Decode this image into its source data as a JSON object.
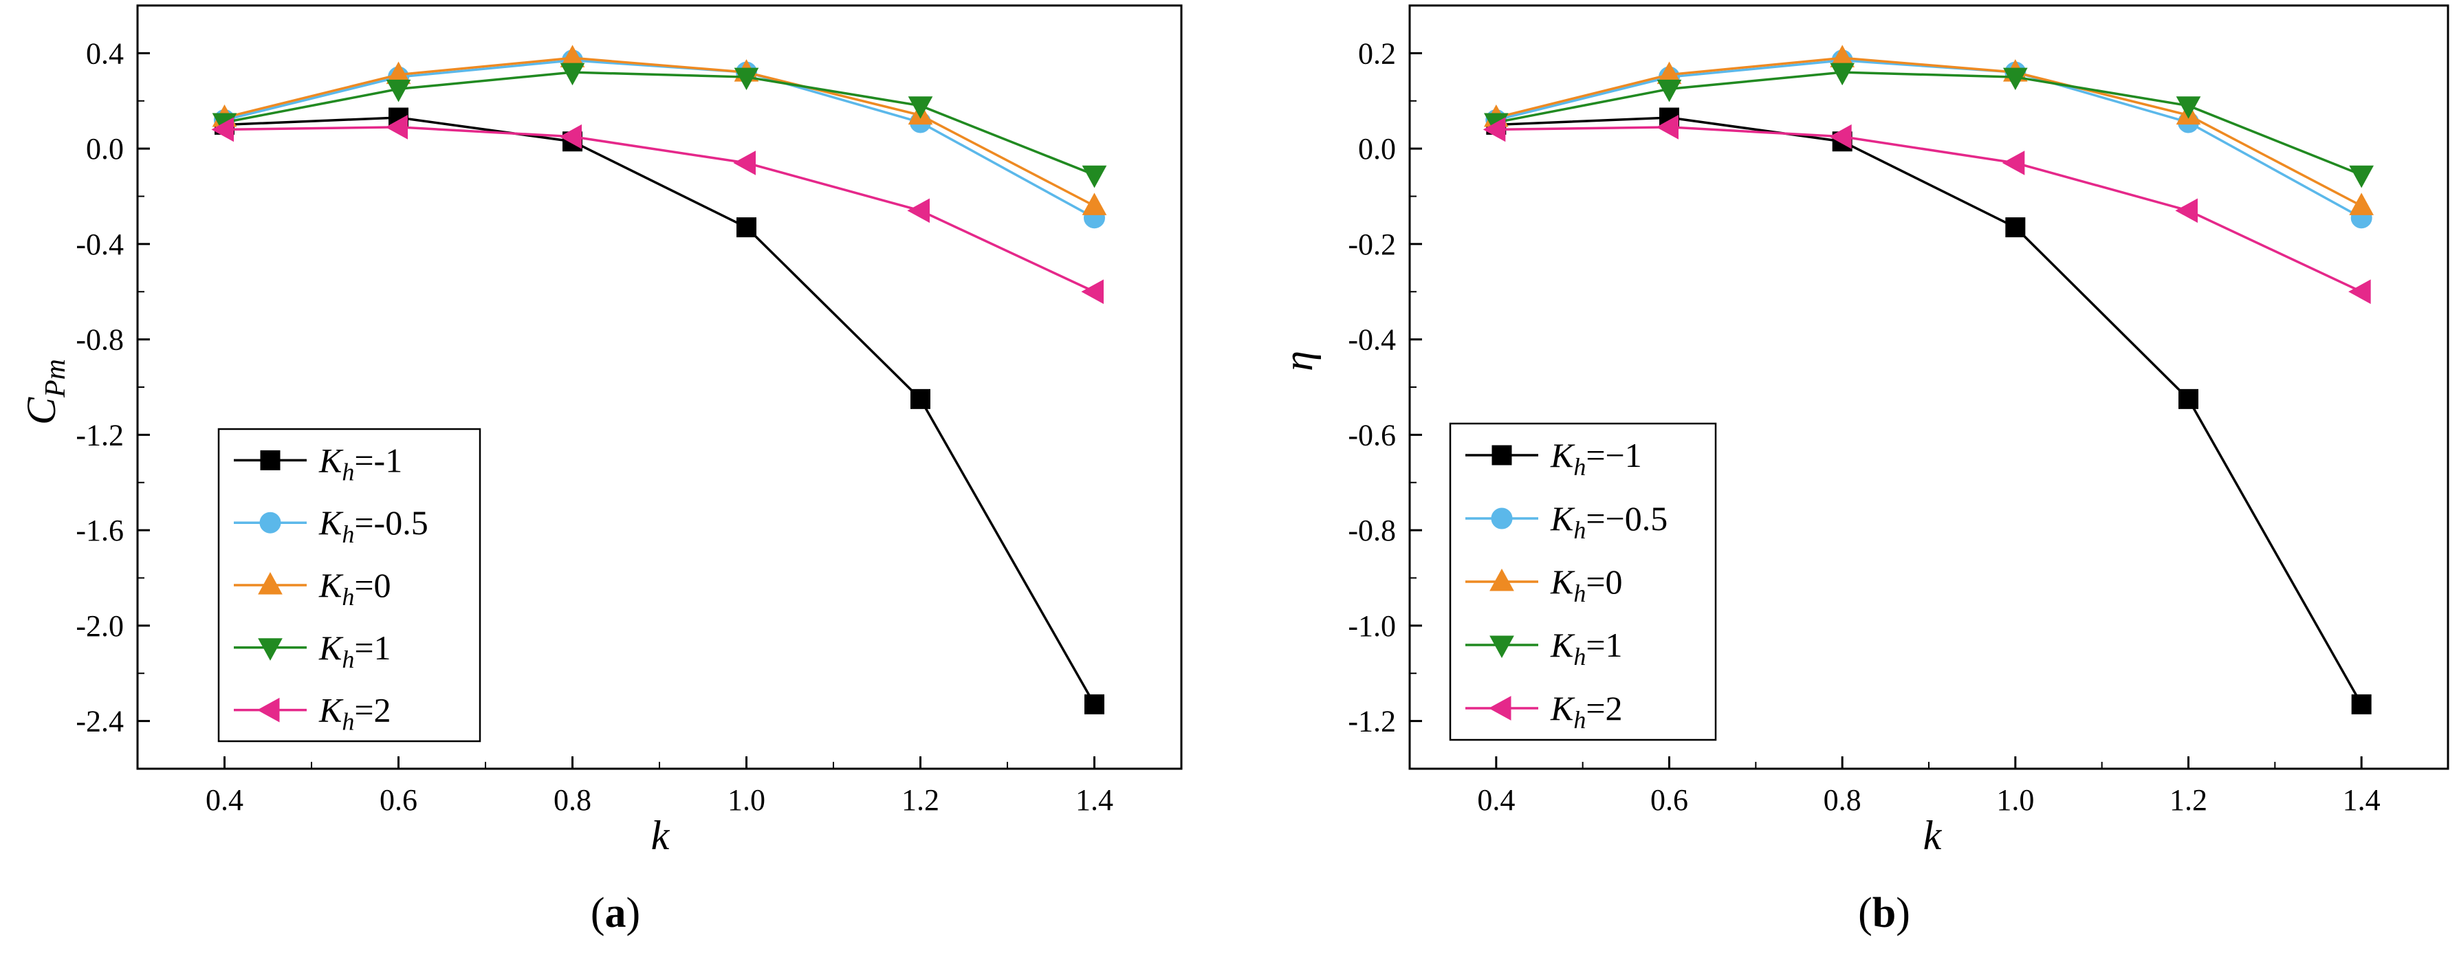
{
  "chart_data": [
    {
      "type": "line",
      "panel_label": "a",
      "xlabel": "k",
      "ylabel_main": "C",
      "ylabel_sub": "Pm",
      "xlim": [
        0.3,
        1.5
      ],
      "ylim": [
        -2.6,
        0.6
      ],
      "xticks": [
        0.4,
        0.6,
        0.8,
        1.0,
        1.2,
        1.4
      ],
      "xtick_labels": [
        "0.4",
        "0.6",
        "0.8",
        "1.0",
        "1.2",
        "1.4"
      ],
      "yticks": [
        0.4,
        0.0,
        -0.4,
        -0.8,
        -1.2,
        -1.6,
        -2.0,
        -2.4
      ],
      "ytick_labels": [
        "0.4",
        "0.0",
        "-0.4",
        "-0.8",
        "-1.2",
        "-1.6",
        "-2.0",
        "-2.4"
      ],
      "x": [
        0.4,
        0.6,
        0.8,
        1.0,
        1.2,
        1.4
      ],
      "legend_position": "lower-left",
      "series": [
        {
          "sym": "K",
          "sub": "h",
          "eq": "=-1",
          "values": [
            0.1,
            0.13,
            0.03,
            -0.33,
            -1.05,
            -2.33
          ],
          "color": "#000000",
          "marker": "square"
        },
        {
          "sym": "K",
          "sub": "h",
          "eq": "=-0.5",
          "values": [
            0.12,
            0.3,
            0.37,
            0.32,
            0.11,
            -0.29
          ],
          "color": "#5bb8ea",
          "marker": "circle"
        },
        {
          "sym": "K",
          "sub": "h",
          "eq": "=0",
          "values": [
            0.13,
            0.31,
            0.38,
            0.32,
            0.14,
            -0.24
          ],
          "color": "#ee8a22",
          "marker": "triangle-up"
        },
        {
          "sym": "K",
          "sub": "h",
          "eq": "=1",
          "values": [
            0.11,
            0.25,
            0.32,
            0.3,
            0.18,
            -0.11
          ],
          "color": "#218a21",
          "marker": "triangle-down"
        },
        {
          "sym": "K",
          "sub": "h",
          "eq": "=2",
          "values": [
            0.08,
            0.09,
            0.05,
            -0.06,
            -0.26,
            -0.6
          ],
          "color": "#e5288a",
          "marker": "triangle-left"
        }
      ]
    },
    {
      "type": "line",
      "panel_label": "b",
      "xlabel": "k",
      "ylabel_main": "η",
      "ylabel_sub": "",
      "xlim": [
        0.3,
        1.5
      ],
      "ylim": [
        -1.3,
        0.3
      ],
      "xticks": [
        0.4,
        0.6,
        0.8,
        1.0,
        1.2,
        1.4
      ],
      "xtick_labels": [
        "0.4",
        "0.6",
        "0.8",
        "1.0",
        "1.2",
        "1.4"
      ],
      "yticks": [
        0.2,
        0.0,
        -0.2,
        -0.4,
        -0.6,
        -0.8,
        -1.0,
        -1.2
      ],
      "ytick_labels": [
        "0.2",
        "0.0",
        "-0.2",
        "-0.4",
        "-0.6",
        "-0.8",
        "-1.0",
        "-1.2"
      ],
      "x": [
        0.4,
        0.6,
        0.8,
        1.0,
        1.2,
        1.4
      ],
      "legend_position": "lower-left",
      "series": [
        {
          "sym": "K",
          "sub": "h",
          "eq": "=−1",
          "values": [
            0.05,
            0.065,
            0.015,
            -0.165,
            -0.525,
            -1.165
          ],
          "color": "#000000",
          "marker": "square"
        },
        {
          "sym": "K",
          "sub": "h",
          "eq": "=−0.5",
          "values": [
            0.06,
            0.15,
            0.185,
            0.16,
            0.055,
            -0.145
          ],
          "color": "#5bb8ea",
          "marker": "circle"
        },
        {
          "sym": "K",
          "sub": "h",
          "eq": "=0",
          "values": [
            0.065,
            0.155,
            0.19,
            0.16,
            0.07,
            -0.12
          ],
          "color": "#ee8a22",
          "marker": "triangle-up"
        },
        {
          "sym": "K",
          "sub": "h",
          "eq": "=1",
          "values": [
            0.055,
            0.125,
            0.16,
            0.15,
            0.09,
            -0.055
          ],
          "color": "#218a21",
          "marker": "triangle-down"
        },
        {
          "sym": "K",
          "sub": "h",
          "eq": "=2",
          "values": [
            0.04,
            0.045,
            0.025,
            -0.03,
            -0.13,
            -0.3
          ],
          "color": "#e5288a",
          "marker": "triangle-left"
        }
      ]
    }
  ]
}
